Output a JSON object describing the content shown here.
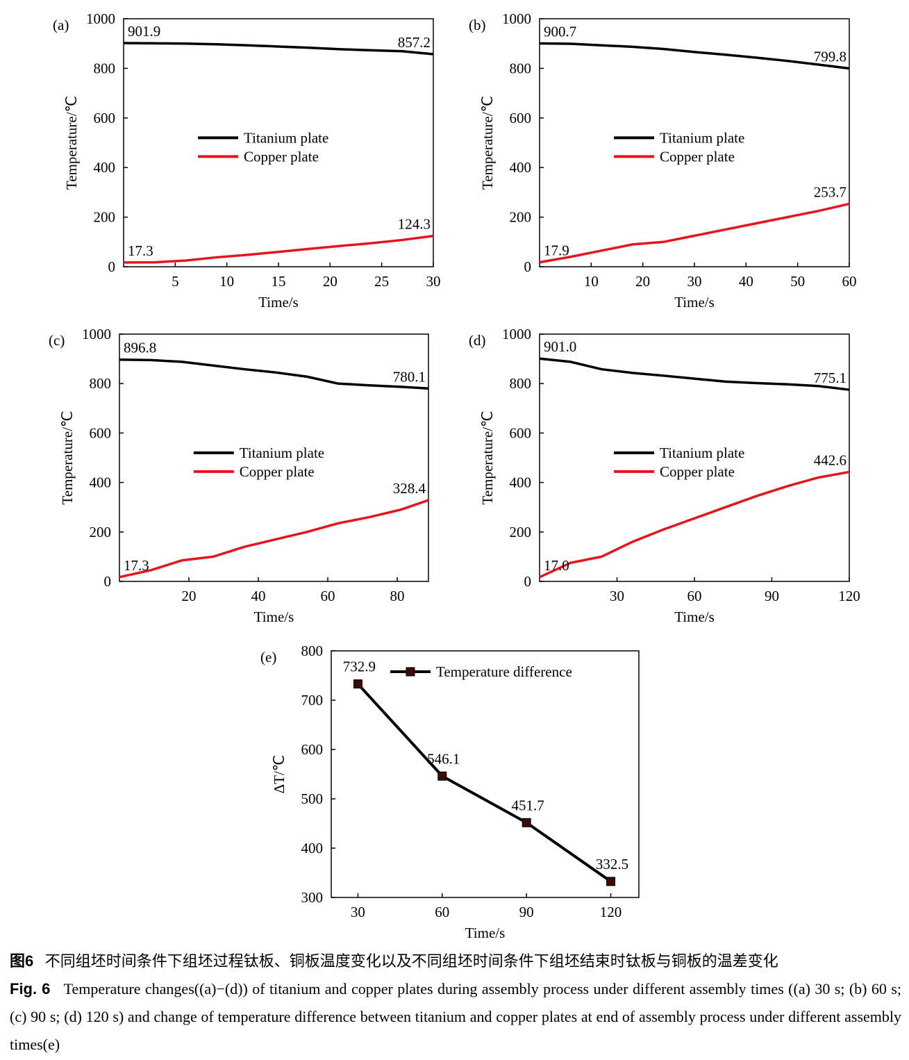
{
  "chart_data": [
    {
      "type": "line",
      "panel_label": "(a)",
      "xlabel": "Time/s",
      "ylabel": "Temperature/℃",
      "x": [
        0,
        3,
        6,
        9,
        12,
        15,
        18,
        21,
        24,
        27,
        30
      ],
      "series": [
        {
          "name": "Titanium plate",
          "color": "#000000",
          "values": [
            901.9,
            901,
            900,
            897,
            893,
            888,
            883,
            877,
            873,
            869,
            857.2
          ],
          "value_labels": [
            "901.9",
            null,
            null,
            null,
            null,
            null,
            null,
            null,
            null,
            null,
            "857.2"
          ]
        },
        {
          "name": "Copper plate",
          "color": "#e8141b",
          "values": [
            17.3,
            18,
            25,
            38,
            48,
            60,
            72,
            84,
            95,
            108,
            124.3
          ],
          "value_labels": [
            "17.3",
            null,
            null,
            null,
            null,
            null,
            null,
            null,
            null,
            null,
            "124.3"
          ]
        }
      ],
      "xlim": [
        0,
        30
      ],
      "ylim": [
        0,
        1000
      ],
      "xticks": [
        5,
        10,
        15,
        20,
        25,
        30
      ],
      "yticks": [
        0,
        200,
        400,
        600,
        800,
        1000
      ],
      "legend": "center-left"
    },
    {
      "type": "line",
      "panel_label": "(b)",
      "xlabel": "Time/s",
      "ylabel": "Temperature/℃",
      "x": [
        0,
        6,
        12,
        18,
        24,
        30,
        36,
        42,
        48,
        54,
        60
      ],
      "series": [
        {
          "name": "Titanium plate",
          "color": "#000000",
          "values": [
            900.7,
            899,
            893,
            887,
            878,
            866,
            855,
            843,
            830,
            815,
            799.8
          ],
          "value_labels": [
            "900.7",
            null,
            null,
            null,
            null,
            null,
            null,
            null,
            null,
            null,
            "799.8"
          ]
        },
        {
          "name": "Copper plate",
          "color": "#e8141b",
          "values": [
            17.9,
            40,
            65,
            90,
            100,
            125,
            150,
            175,
            200,
            225,
            253.7
          ],
          "value_labels": [
            "17.9",
            null,
            null,
            null,
            null,
            null,
            null,
            null,
            null,
            null,
            "253.7"
          ]
        }
      ],
      "xlim": [
        0,
        60
      ],
      "ylim": [
        0,
        1000
      ],
      "xticks": [
        10,
        20,
        30,
        40,
        50,
        60
      ],
      "yticks": [
        0,
        200,
        400,
        600,
        800,
        1000
      ],
      "legend": "center-left"
    },
    {
      "type": "line",
      "panel_label": "(c)",
      "xlabel": "Time/s",
      "ylabel": "Temperature/℃",
      "x": [
        0,
        9,
        18,
        27,
        36,
        45,
        54,
        63,
        72,
        81,
        89
      ],
      "series": [
        {
          "name": "Titanium plate",
          "color": "#000000",
          "values": [
            896.8,
            895,
            888,
            873,
            858,
            845,
            828,
            800,
            793,
            787,
            780.1
          ],
          "value_labels": [
            "896.8",
            null,
            null,
            null,
            null,
            null,
            null,
            null,
            null,
            null,
            "780.1"
          ]
        },
        {
          "name": "Copper plate",
          "color": "#e8141b",
          "values": [
            17.3,
            45,
            85,
            100,
            140,
            170,
            200,
            235,
            260,
            290,
            328.4
          ],
          "value_labels": [
            "17.3",
            null,
            null,
            null,
            null,
            null,
            null,
            null,
            null,
            null,
            "328.4"
          ]
        }
      ],
      "xlim": [
        0,
        89
      ],
      "ylim": [
        0,
        1000
      ],
      "xticks": [
        20,
        40,
        60,
        80
      ],
      "yticks": [
        0,
        200,
        400,
        600,
        800,
        1000
      ],
      "legend": "center-left"
    },
    {
      "type": "line",
      "panel_label": "(d)",
      "xlabel": "Time/s",
      "ylabel": "Temperature/℃",
      "x": [
        0,
        12,
        24,
        36,
        48,
        60,
        72,
        84,
        96,
        108,
        120
      ],
      "series": [
        {
          "name": "Titanium plate",
          "color": "#000000",
          "values": [
            901.0,
            888,
            858,
            843,
            832,
            820,
            808,
            802,
            797,
            790,
            775.1
          ],
          "value_labels": [
            "901.0",
            null,
            null,
            null,
            null,
            null,
            null,
            null,
            null,
            null,
            "775.1"
          ]
        },
        {
          "name": "Copper plate",
          "color": "#e8141b",
          "values": [
            17.0,
            75,
            100,
            160,
            210,
            255,
            300,
            345,
            385,
            420,
            442.6
          ],
          "value_labels": [
            "17.0",
            null,
            null,
            null,
            null,
            null,
            null,
            null,
            null,
            null,
            "442.6"
          ]
        }
      ],
      "xlim": [
        0,
        120
      ],
      "ylim": [
        0,
        1000
      ],
      "xticks": [
        30,
        60,
        90,
        120
      ],
      "yticks": [
        0,
        200,
        400,
        600,
        800,
        1000
      ],
      "legend": "center-left"
    },
    {
      "type": "line",
      "panel_label": "(e)",
      "xlabel": "Time/s",
      "ylabel": "ΔT/℃",
      "marker": "square",
      "marker_color": "#3d0a0a",
      "x": [
        30,
        60,
        90,
        120
      ],
      "series": [
        {
          "name": "Temperature difference",
          "color": "#000000",
          "values": [
            732.9,
            546.1,
            451.7,
            332.5
          ],
          "value_labels": [
            "732.9",
            "546.1",
            "451.7",
            "332.5"
          ]
        }
      ],
      "xlim": [
        20.5,
        130
      ],
      "ylim": [
        300,
        800
      ],
      "xticks": [
        30,
        60,
        90,
        120
      ],
      "yticks": [
        300,
        400,
        500,
        600,
        700,
        800
      ],
      "legend": "upper-center"
    }
  ],
  "caption": {
    "cn_label": "图6",
    "cn_text": "不同组坯时间条件下组坯过程钛板、铜板温度变化以及不同组坯时间条件下组坯结束时钛板与铜板的温差变化",
    "en_label": "Fig. 6",
    "en_text": "Temperature changes((a)−(d)) of titanium and copper plates during assembly process under different assembly times ((a) 30 s; (b) 60 s; (c) 90 s; (d) 120 s) and change of temperature difference between titanium and copper plates at end of assembly process under different assembly times(e)"
  }
}
